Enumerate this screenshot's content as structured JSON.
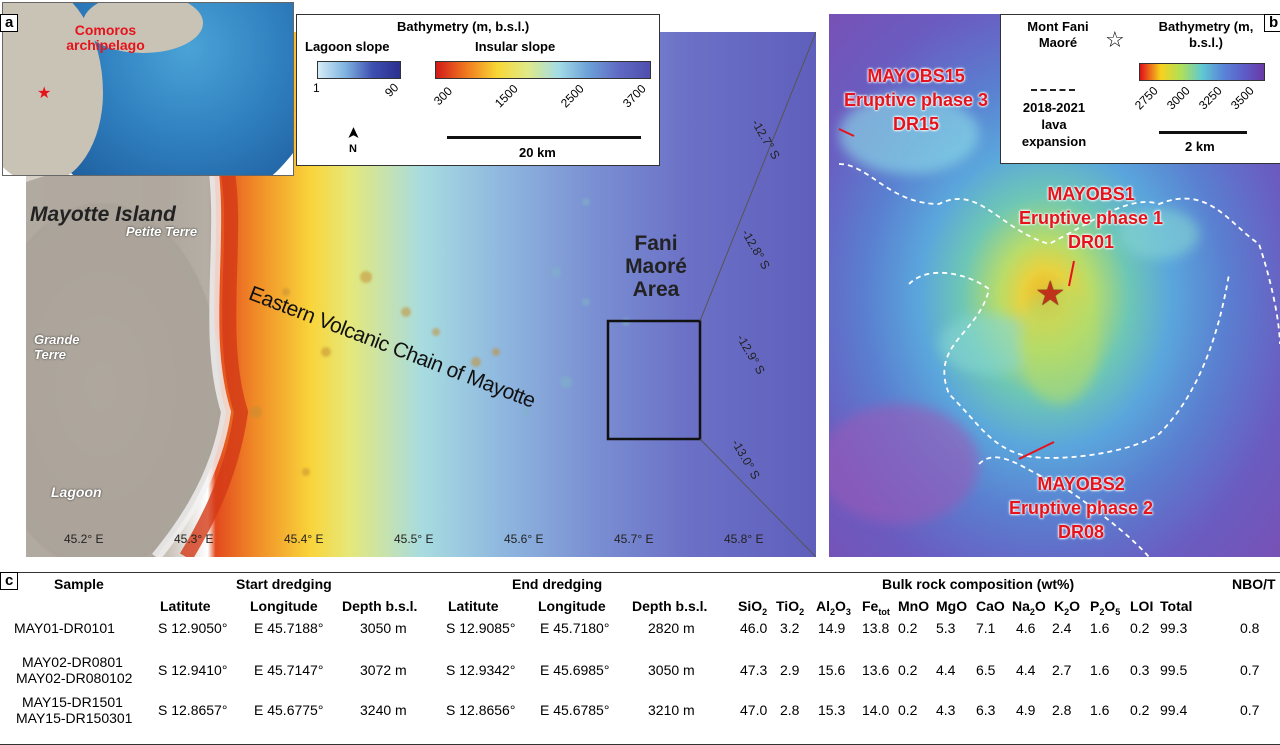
{
  "panel_a": {
    "letter": "a",
    "inset_label": "Comoros archipelago",
    "legend": {
      "title": "Bathymetry (m, b.s.l.)",
      "lagoon_title": "Lagoon slope",
      "lagoon_min": "1",
      "lagoon_max": "90",
      "insular_title": "Insular slope",
      "insular_ticks": [
        "300",
        "1500",
        "2500",
        "3700"
      ],
      "north": "N",
      "scale": "20 km"
    },
    "labels": {
      "mayotte": "Mayotte Island",
      "petite_terre": "Petite Terre",
      "grande_terre": "Grande Terre",
      "lagoon": "Lagoon",
      "chain": "Eastern Volcanic Chain of Mayotte",
      "fani_area": "Fani Maoré Area"
    },
    "lat_ticks": [
      "-12.7° S",
      "-12.8° S",
      "-12.9° S",
      "-13.0° S"
    ],
    "lon_ticks": [
      "45.2° E",
      "45.3° E",
      "45.4° E",
      "45.5° E",
      "45.6° E",
      "45.7° E",
      "45.8° E"
    ]
  },
  "panel_b": {
    "letter": "b",
    "legend": {
      "star_label": "Mont Fani Maoré",
      "lava_label": "2018-2021 lava expansion",
      "title": "Bathymetry (m, b.s.l.)",
      "ticks": [
        "2750",
        "3000",
        "3250",
        "3500"
      ],
      "scale": "2 km"
    },
    "sites": [
      {
        "line1": "MAYOBS15",
        "line2": "Eruptive phase 3",
        "line3": "DR15"
      },
      {
        "line1": "MAYOBS1",
        "line2": "Eruptive phase 1",
        "line3": "DR01"
      },
      {
        "line1": "MAYOBS2",
        "line2": "Eruptive phase 2",
        "line3": "DR08"
      }
    ]
  },
  "panel_c": {
    "letter": "c",
    "headers": {
      "sample": "Sample",
      "start": "Start dredging",
      "end": "End dredging",
      "bulk": "Bulk rock composition (wt%)",
      "nbot": "NBO/T"
    },
    "subheaders": [
      "Latitute",
      "Longitude",
      "Depth b.s.l.",
      "Latitute",
      "Longitude",
      "Depth b.s.l.",
      "SiO2",
      "TiO2",
      "Al2O3",
      "Fetot",
      "MnO",
      "MgO",
      "CaO",
      "Na2O",
      "K2O",
      "P2O5",
      "LOI",
      "Total"
    ],
    "rows": [
      {
        "sample": "MAY01-DR0101",
        "sample2": "",
        "lat1": "S 12.9050°",
        "lon1": "E 45.7188°",
        "d1": "3050 m",
        "lat2": "S 12.9085°",
        "lon2": "E 45.7180°",
        "d2": "2820 m",
        "vals": [
          "46.0",
          "3.2",
          "14.9",
          "13.8",
          "0.2",
          "5.3",
          "7.1",
          "4.6",
          "2.4",
          "1.6",
          "0.2",
          "99.3"
        ],
        "nbot": "0.8"
      },
      {
        "sample": "MAY02-DR0801",
        "sample2": "MAY02-DR080102",
        "lat1": "S 12.9410°",
        "lon1": "E 45.7147°",
        "d1": "3072 m",
        "lat2": "S 12.9342°",
        "lon2": "E 45.6985°",
        "d2": "3050 m",
        "vals": [
          "47.3",
          "2.9",
          "15.6",
          "13.6",
          "0.2",
          "4.4",
          "6.5",
          "4.4",
          "2.7",
          "1.6",
          "0.3",
          "99.5"
        ],
        "nbot": "0.7"
      },
      {
        "sample": "MAY15-DR1501",
        "sample2": "MAY15-DR150301",
        "lat1": "S 12.8657°",
        "lon1": "E 45.6775°",
        "d1": "3240 m",
        "lat2": "S 12.8656°",
        "lon2": "E 45.6785°",
        "d2": "3210 m",
        "vals": [
          "47.0",
          "2.8",
          "15.3",
          "14.0",
          "0.2",
          "4.3",
          "6.3",
          "4.9",
          "2.8",
          "1.6",
          "0.2",
          "99.4"
        ],
        "nbot": "0.7"
      }
    ]
  },
  "colors": {
    "label_red": "#e5131c"
  }
}
